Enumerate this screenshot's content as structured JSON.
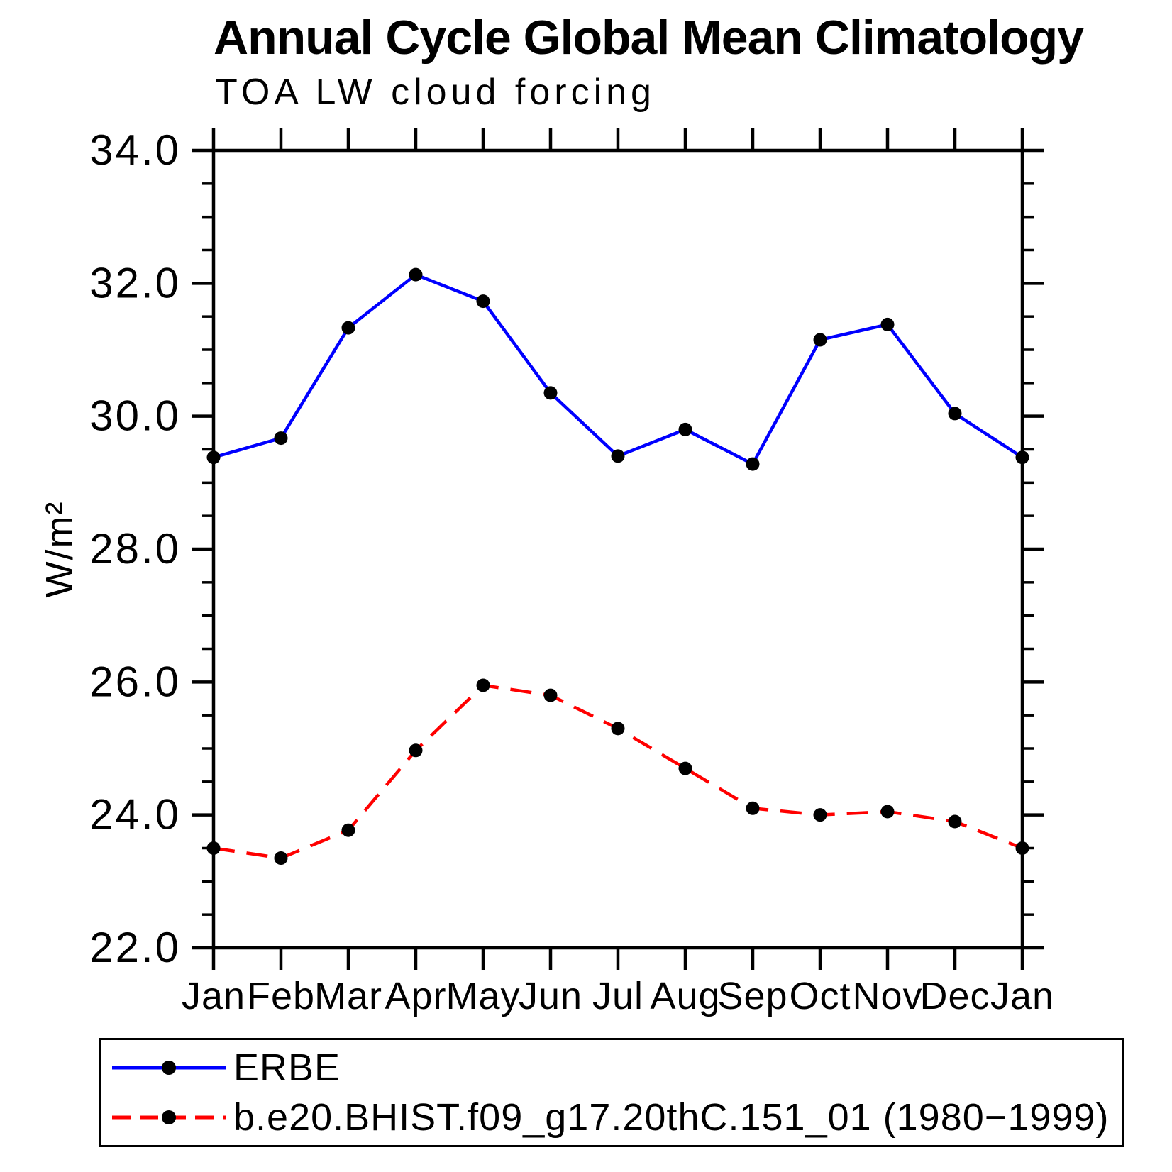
{
  "title": "Annual Cycle Global Mean Climatology",
  "subtitle": "TOA LW cloud forcing",
  "marker_color": "#000000",
  "axis_color": "#000000",
  "chart_data": {
    "type": "line",
    "title": "Annual Cycle Global Mean Climatology",
    "subtitle": "TOA LW cloud forcing",
    "ylabel": "W/m²",
    "xlabel": "",
    "x": [
      "Jan",
      "Feb",
      "Mar",
      "Apr",
      "May",
      "Jun",
      "Jul",
      "Aug",
      "Sep",
      "Oct",
      "Nov",
      "Dec",
      "Jan"
    ],
    "ylim": [
      22.0,
      34.0
    ],
    "y_major_step": 2.0,
    "y_minor_step": 0.5,
    "y_tick_labels": [
      "34.0",
      "32.0",
      "30.0",
      "28.0",
      "26.0",
      "24.0",
      "22.0"
    ],
    "grid": false,
    "legend_position": "bottom-left-box",
    "marker": "filled-circle",
    "marker_color": "#000000",
    "series": [
      {
        "id": "erbe",
        "name": "ERBE",
        "color": "#0000ff",
        "line_style": "solid",
        "values": [
          29.38,
          29.67,
          31.33,
          32.13,
          31.73,
          30.35,
          29.4,
          29.8,
          29.28,
          31.15,
          31.38,
          30.04,
          29.38
        ]
      },
      {
        "id": "model",
        "name": "b.e20.BHIST.f09_g17.20thC.151_01 (1980−1999)",
        "color": "#ff0000",
        "line_style": "dashed",
        "values": [
          23.5,
          23.35,
          23.77,
          24.97,
          25.95,
          25.8,
          25.3,
          24.7,
          24.1,
          24.0,
          24.05,
          23.9,
          23.5
        ]
      }
    ]
  }
}
